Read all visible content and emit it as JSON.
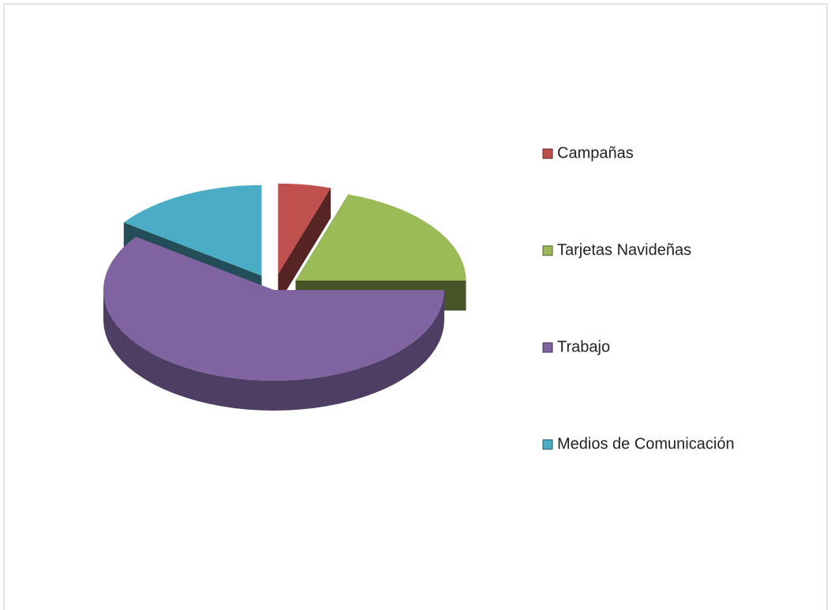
{
  "chart_data": {
    "type": "pie",
    "categories": [
      "Campañas",
      "Tarjetas Navideñas",
      "Trabajo",
      "Medios de Comunicación"
    ],
    "values": [
      5,
      20,
      60,
      15
    ],
    "colors": [
      "#c0504d",
      "#9bbb59",
      "#8064a2",
      "#4bacc6"
    ],
    "legend": "right"
  }
}
